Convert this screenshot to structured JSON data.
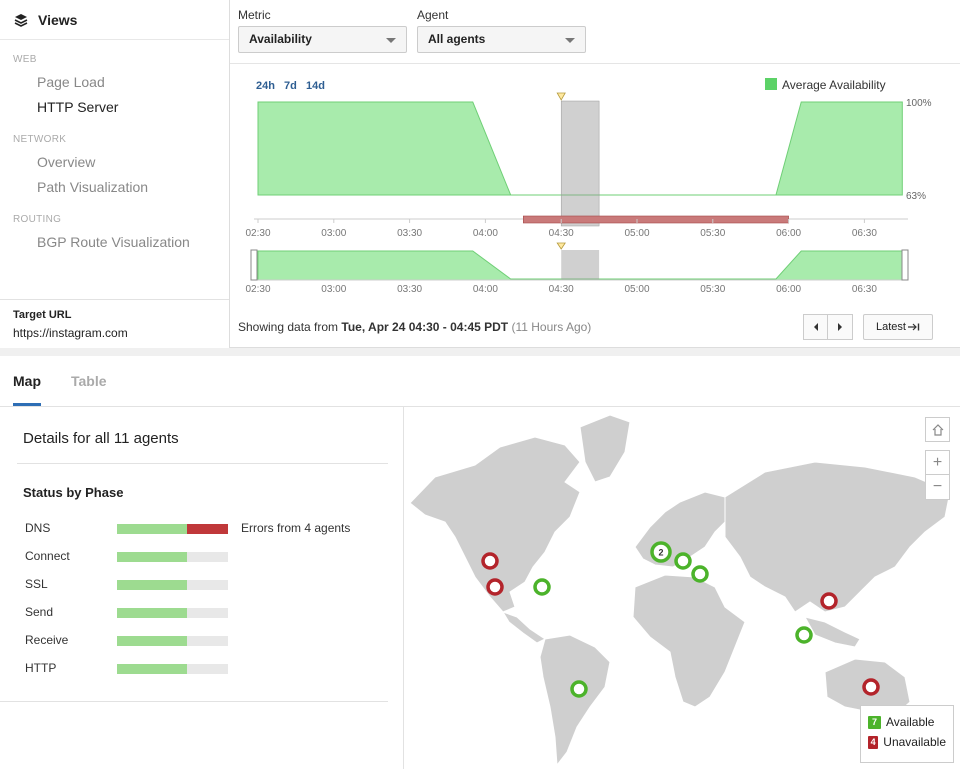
{
  "sidebar": {
    "title": "Views",
    "sections": [
      {
        "label": "WEB",
        "items": [
          {
            "label": "Page Load",
            "active": false
          },
          {
            "label": "HTTP Server",
            "active": true
          }
        ]
      },
      {
        "label": "NETWORK",
        "items": [
          {
            "label": "Overview",
            "active": false
          },
          {
            "label": "Path Visualization",
            "active": false
          }
        ]
      },
      {
        "label": "ROUTING",
        "items": [
          {
            "label": "BGP Route Visualization",
            "active": false
          }
        ]
      }
    ],
    "target_label": "Target URL",
    "target_url": "https://instagram.com"
  },
  "controls": {
    "metric_label": "Metric",
    "metric_value": "Availability",
    "agent_label": "Agent",
    "agent_value": "All agents"
  },
  "chart": {
    "ranges": [
      "24h",
      "7d",
      "14d"
    ],
    "legend": "Average Availability",
    "y_max_label": "100%",
    "y_min_label": "63%",
    "x_ticks": [
      "02:30",
      "03:00",
      "03:30",
      "04:00",
      "04:30",
      "05:00",
      "05:30",
      "06:00",
      "06:30"
    ]
  },
  "chart_data": {
    "type": "area",
    "series": [
      {
        "name": "Average Availability",
        "x": [
          "02:30",
          "03:55",
          "04:10",
          "04:30",
          "05:30",
          "05:55",
          "06:05",
          "06:45"
        ],
        "values": [
          100,
          100,
          63,
          63,
          63,
          63,
          100,
          100
        ]
      }
    ],
    "ylim": [
      63,
      100
    ],
    "selected_range": [
      "04:30",
      "04:45"
    ],
    "error_range": [
      "04:15",
      "06:00"
    ],
    "color": "#a8ebac"
  },
  "footer": {
    "prefix": "Showing data from ",
    "range": "Tue, Apr 24 04:30 - 04:45 PDT",
    "ago": "(11 Hours Ago)",
    "latest": "Latest"
  },
  "tabs": [
    {
      "label": "Map"
    },
    {
      "label": "Table"
    }
  ],
  "details": {
    "title": "Details for all 11 agents",
    "phase_title": "Status by Phase",
    "phases": [
      {
        "name": "DNS",
        "ok": 0.63,
        "err": 0.37,
        "note": "Errors from 4 agents"
      },
      {
        "name": "Connect",
        "ok": 0.63,
        "err": 0,
        "note": ""
      },
      {
        "name": "SSL",
        "ok": 0.63,
        "err": 0,
        "note": ""
      },
      {
        "name": "Send",
        "ok": 0.63,
        "err": 0,
        "note": ""
      },
      {
        "name": "Receive",
        "ok": 0.63,
        "err": 0,
        "note": ""
      },
      {
        "name": "HTTP",
        "ok": 0.63,
        "err": 0,
        "note": ""
      }
    ]
  },
  "map": {
    "cluster_count": "2",
    "legend": [
      {
        "count": "7",
        "label": "Available",
        "color": "#4cb32b"
      },
      {
        "count": "4",
        "label": "Unavailable",
        "color": "#b3242b"
      }
    ]
  },
  "colors": {
    "ok": "#4cb32b",
    "err": "#b3242b",
    "area": "#a8ebac",
    "link": "#2e5e92"
  }
}
